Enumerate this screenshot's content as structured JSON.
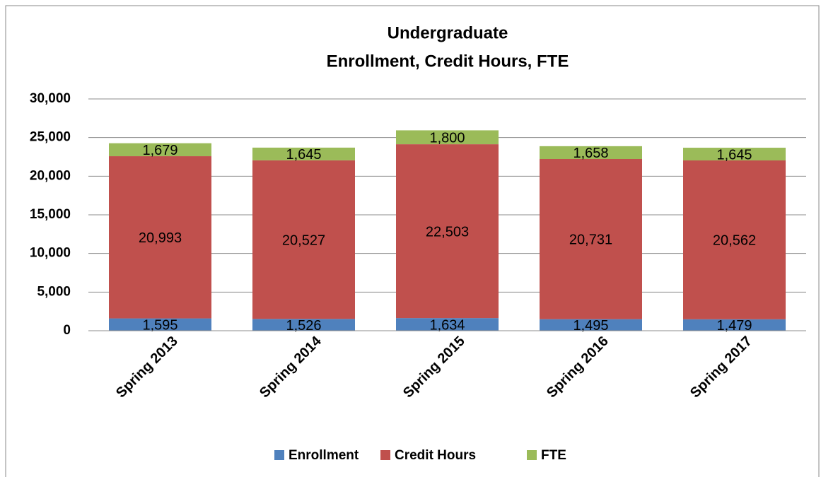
{
  "chart_data": {
    "type": "stacked_bar",
    "title": "Undergraduate",
    "subtitle": "Enrollment, Credit Hours, FTE",
    "categories": [
      "Spring 2013",
      "Spring 2014",
      "Spring 2015",
      "Spring 2016",
      "Spring 2017"
    ],
    "series": [
      {
        "name": "Enrollment",
        "color": "#4f81bd",
        "values": [
          1595,
          1526,
          1634,
          1495,
          1479
        ],
        "value_labels": [
          "1,595",
          "1,526",
          "1,634",
          "1,495",
          "1,479"
        ]
      },
      {
        "name": "Credit Hours",
        "color": "#c0504d",
        "values": [
          20993,
          20527,
          22503,
          20731,
          20562
        ],
        "value_labels": [
          "20,993",
          "20,527",
          "22,503",
          "20,731",
          "20,562"
        ]
      },
      {
        "name": "FTE",
        "color": "#9bbb59",
        "values": [
          1679,
          1645,
          1800,
          1658,
          1645
        ],
        "value_labels": [
          "1,679",
          "1,645",
          "1,800",
          "1,658",
          "1,645"
        ]
      }
    ],
    "ylim": [
      0,
      30000
    ],
    "yticks": [
      0,
      {
        "value": 5000,
        "label": "5,000"
      },
      {
        "value": 10000,
        "label": "10,000"
      },
      {
        "value": 15000,
        "label": "15,000"
      },
      {
        "value": 20000,
        "label": "20,000"
      },
      {
        "value": 25000,
        "label": "25,000"
      },
      {
        "value": 30000,
        "label": "30,000"
      }
    ],
    "grid": true,
    "legend": "bottom"
  }
}
